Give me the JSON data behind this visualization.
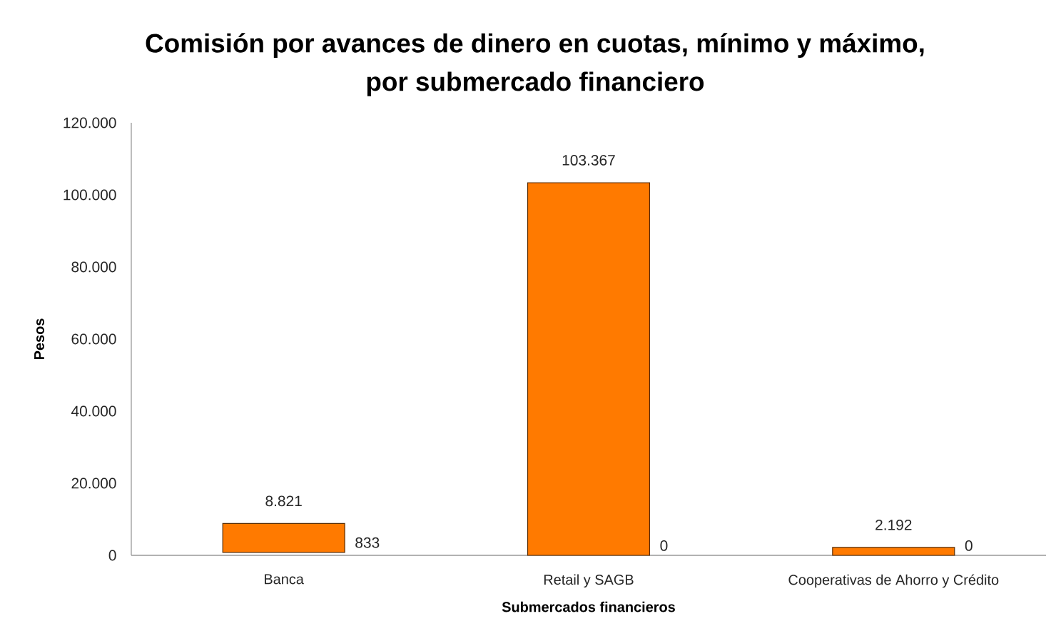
{
  "chart_data": {
    "type": "bar",
    "title": "Comisión por avances de dinero en cuotas, mínimo y máximo, por submercado financiero",
    "xlabel": "Submercados financieros",
    "ylabel": "Pesos",
    "categories": [
      "Banca",
      "Retail y SAGB",
      "Cooperativas de Ahorro y Crédito"
    ],
    "base": [
      833,
      0,
      0
    ],
    "values": [
      7988,
      103367,
      2192
    ],
    "color": "#ff7a00",
    "ylim": [
      0,
      120000
    ],
    "yticks": [
      0,
      {
        "value": 20000,
        "label": "20.000"
      },
      {
        "value": 40000,
        "label": "40.000"
      },
      {
        "value": 60000,
        "label": "60.000"
      },
      {
        "value": 80000,
        "label": "80.000"
      },
      {
        "value": 100000,
        "label": "100.000"
      },
      {
        "value": 120000,
        "label": "120.000"
      }
    ],
    "annotations": [
      {
        "text": "8.821",
        "x": "Banca",
        "y": 8821
      },
      "833",
      {
        "text": "103.367",
        "x": "Retail y SAGB",
        "y": 103367
      },
      "0",
      {
        "text": "2.192",
        "x": "Cooperativas de Ahorro y Crédito",
        "y": 2192
      },
      "0"
    ]
  }
}
